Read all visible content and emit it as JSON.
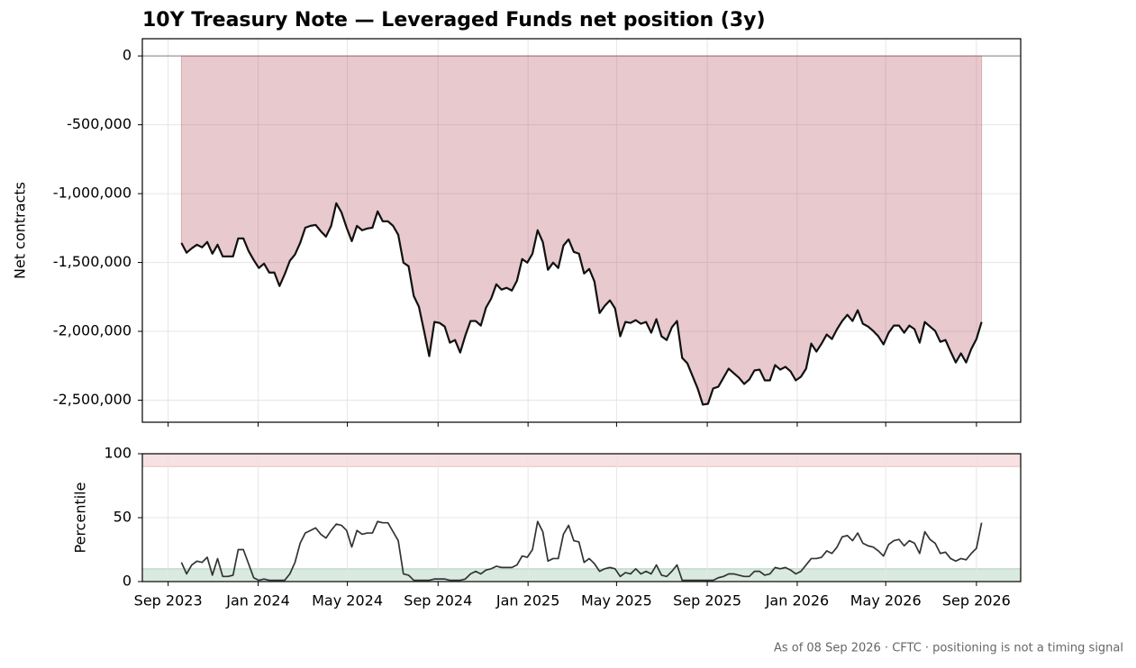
{
  "chart_data": [
    {
      "type": "area",
      "title": "10Y Treasury Note — Leveraged Funds net position (3y)",
      "ylabel": "Net contracts",
      "x": [
        "2023-09-19",
        "2023-09-26",
        "2023-10-03",
        "2023-10-10",
        "2023-10-17",
        "2023-10-24",
        "2023-10-31",
        "2023-11-07",
        "2023-11-14",
        "2023-11-21",
        "2023-11-28",
        "2023-12-05",
        "2023-12-12",
        "2023-12-19",
        "2023-12-26",
        "2024-01-02",
        "2024-01-09",
        "2024-01-16",
        "2024-01-23",
        "2024-01-30",
        "2024-02-06",
        "2024-02-13",
        "2024-02-20",
        "2024-02-27",
        "2024-03-05",
        "2024-03-12",
        "2024-03-19",
        "2024-03-26",
        "2024-04-02",
        "2024-04-09",
        "2024-04-16",
        "2024-04-23",
        "2024-04-30",
        "2024-05-07",
        "2024-05-14",
        "2024-05-21",
        "2024-05-28",
        "2024-06-04",
        "2024-06-11",
        "2024-06-18",
        "2024-06-25",
        "2024-07-02",
        "2024-07-09",
        "2024-07-16",
        "2024-07-23",
        "2024-07-30",
        "2024-08-06",
        "2024-08-13",
        "2024-08-20",
        "2024-08-27",
        "2024-09-03",
        "2024-09-10",
        "2024-09-17",
        "2024-09-24",
        "2024-10-01",
        "2024-10-08",
        "2024-10-15",
        "2024-10-22",
        "2024-10-29",
        "2024-11-05",
        "2024-11-12",
        "2024-11-19",
        "2024-11-26",
        "2024-12-03",
        "2024-12-10",
        "2024-12-17",
        "2024-12-24",
        "2024-12-31",
        "2025-01-07",
        "2025-01-14",
        "2025-01-21",
        "2025-01-28",
        "2025-02-04",
        "2025-02-11",
        "2025-02-18",
        "2025-02-25",
        "2025-03-04",
        "2025-03-11",
        "2025-03-18",
        "2025-03-25",
        "2025-04-01",
        "2025-04-08",
        "2025-04-15",
        "2025-04-22",
        "2025-04-29",
        "2025-05-06",
        "2025-05-13",
        "2025-05-20",
        "2025-05-27",
        "2025-06-03",
        "2025-06-10",
        "2025-06-17",
        "2025-06-24",
        "2025-07-01",
        "2025-07-08",
        "2025-07-15",
        "2025-07-22",
        "2025-07-29",
        "2025-08-05",
        "2025-08-12",
        "2025-08-19",
        "2025-08-26",
        "2025-09-02",
        "2025-09-09",
        "2025-09-16",
        "2025-09-23",
        "2025-09-30",
        "2025-10-07",
        "2025-10-14",
        "2025-10-21",
        "2025-10-28",
        "2025-11-04",
        "2025-11-11",
        "2025-11-18",
        "2025-11-25",
        "2025-12-02",
        "2025-12-09",
        "2025-12-16",
        "2025-12-23",
        "2025-12-30",
        "2026-01-06",
        "2026-01-13",
        "2026-01-20",
        "2026-01-27",
        "2026-02-03",
        "2026-02-10",
        "2026-02-17",
        "2026-02-24",
        "2026-03-03",
        "2026-03-10",
        "2026-03-17",
        "2026-03-24",
        "2026-03-31",
        "2026-04-07",
        "2026-04-14",
        "2026-04-21",
        "2026-04-28",
        "2026-05-05",
        "2026-05-12",
        "2026-05-19",
        "2026-05-26",
        "2026-06-02",
        "2026-06-09",
        "2026-06-16",
        "2026-06-23",
        "2026-06-30",
        "2026-07-07",
        "2026-07-14",
        "2026-07-21",
        "2026-07-28",
        "2026-08-04",
        "2026-08-11",
        "2026-08-18",
        "2026-08-25",
        "2026-09-01",
        "2026-09-08"
      ],
      "values": [
        -1358000,
        -1429000,
        -1397000,
        -1371000,
        -1390000,
        -1351000,
        -1436000,
        -1371000,
        -1456000,
        -1456000,
        -1456000,
        -1325000,
        -1325000,
        -1416000,
        -1482000,
        -1540000,
        -1508000,
        -1573000,
        -1573000,
        -1671000,
        -1586000,
        -1488000,
        -1442000,
        -1358000,
        -1247000,
        -1234000,
        -1227000,
        -1273000,
        -1312000,
        -1234000,
        -1070000,
        -1136000,
        -1247000,
        -1345000,
        -1234000,
        -1266000,
        -1253000,
        -1247000,
        -1129000,
        -1201000,
        -1201000,
        -1234000,
        -1299000,
        -1501000,
        -1527000,
        -1743000,
        -1821000,
        -1997000,
        -2180000,
        -1932000,
        -1939000,
        -1965000,
        -2082000,
        -2063000,
        -2154000,
        -2030000,
        -1925000,
        -1925000,
        -1958000,
        -1828000,
        -1762000,
        -1658000,
        -1697000,
        -1684000,
        -1704000,
        -1632000,
        -1475000,
        -1501000,
        -1436000,
        -1266000,
        -1351000,
        -1553000,
        -1501000,
        -1540000,
        -1377000,
        -1332000,
        -1423000,
        -1436000,
        -1580000,
        -1547000,
        -1638000,
        -1867000,
        -1815000,
        -1775000,
        -1834000,
        -2036000,
        -1932000,
        -1939000,
        -1919000,
        -1945000,
        -1932000,
        -2010000,
        -1912000,
        -2036000,
        -2063000,
        -1971000,
        -1925000,
        -2193000,
        -2232000,
        -2324000,
        -2415000,
        -2532000,
        -2526000,
        -2415000,
        -2402000,
        -2337000,
        -2271000,
        -2304000,
        -2337000,
        -2382000,
        -2350000,
        -2284000,
        -2278000,
        -2356000,
        -2356000,
        -2245000,
        -2278000,
        -2258000,
        -2291000,
        -2356000,
        -2330000,
        -2271000,
        -2089000,
        -2147000,
        -2089000,
        -2023000,
        -2056000,
        -1984000,
        -1925000,
        -1880000,
        -1925000,
        -1847000,
        -1945000,
        -1965000,
        -1997000,
        -2036000,
        -2095000,
        -2010000,
        -1958000,
        -1958000,
        -2010000,
        -1958000,
        -1984000,
        -2082000,
        -1932000,
        -1965000,
        -1997000,
        -2076000,
        -2063000,
        -2147000,
        -2226000,
        -2160000,
        -2226000,
        -2128000,
        -2056000,
        -1932000
      ],
      "color": "#111111",
      "fill_color": "#b85763",
      "xlim": [
        "2023-07-28",
        "2026-10-31"
      ],
      "xticks": [
        {
          "value": "2023-09-01",
          "label": "Sep 2023"
        },
        {
          "value": "2024-01-01",
          "label": "Jan 2024"
        },
        {
          "value": "2024-05-01",
          "label": "May 2024"
        },
        {
          "value": "2024-09-01",
          "label": "Sep 2024"
        },
        {
          "value": "2025-01-01",
          "label": "Jan 2025"
        },
        {
          "value": "2025-05-01",
          "label": "May 2025"
        },
        {
          "value": "2025-09-01",
          "label": "Sep 2025"
        },
        {
          "value": "2026-01-01",
          "label": "Jan 2026"
        },
        {
          "value": "2026-05-01",
          "label": "May 2026"
        },
        {
          "value": "2026-09-01",
          "label": "Sep 2026"
        }
      ],
      "ylim": [
        -2660000,
        125000
      ],
      "yticks": [
        0,
        {
          "value": -500000,
          "label": "-500,000"
        },
        {
          "value": -1000000,
          "label": "-1,000,000"
        },
        {
          "value": -1500000,
          "label": "-1,500,000"
        },
        {
          "value": -2000000,
          "label": "-2,000,000"
        },
        {
          "value": -2500000,
          "label": "-2,500,000"
        }
      ],
      "grid": true,
      "zero_line": true
    },
    {
      "type": "line",
      "ylabel": "Percentile",
      "values": [
        15,
        6,
        13,
        16,
        15,
        19,
        5,
        18,
        4,
        4,
        5,
        25,
        25,
        14,
        3,
        1,
        2,
        1,
        1,
        1,
        1,
        6,
        15,
        30,
        38,
        40,
        42,
        37,
        34,
        40,
        45,
        44,
        40,
        27,
        40,
        37,
        38,
        38,
        47,
        46,
        46,
        39,
        32,
        6,
        5,
        1,
        1,
        1,
        1,
        2,
        2,
        2,
        1,
        1,
        1,
        2,
        6,
        8,
        6,
        9,
        10,
        12,
        11,
        11,
        11,
        13,
        20,
        19,
        25,
        47,
        39,
        16,
        18,
        18,
        37,
        44,
        32,
        31,
        15,
        18,
        14,
        8,
        10,
        11,
        10,
        4,
        7,
        6,
        10,
        6,
        8,
        6,
        13,
        5,
        4,
        8,
        13,
        1,
        1,
        1,
        1,
        1,
        1,
        1,
        3,
        4,
        6,
        6,
        5,
        4,
        4,
        8,
        8,
        5,
        6,
        11,
        10,
        11,
        9,
        6,
        8,
        13,
        18,
        18,
        19,
        24,
        22,
        27,
        35,
        36,
        32,
        38,
        30,
        28,
        27,
        24,
        20,
        29,
        32,
        33,
        28,
        32,
        30,
        22,
        39,
        33,
        30,
        22,
        23,
        18,
        16,
        18,
        17,
        22,
        26,
        46
      ],
      "color": "#333333",
      "ylim": [
        0,
        100
      ],
      "yticks": [
        0,
        50,
        100
      ],
      "bands": [
        {
          "range": [
            90,
            100
          ],
          "color": "#e39aa3"
        },
        {
          "range": [
            0,
            10
          ],
          "color": "#84b99c"
        }
      ],
      "grid": true
    }
  ],
  "footnote": "As of 08 Sep 2026 · CFTC · positioning is not a timing signal"
}
